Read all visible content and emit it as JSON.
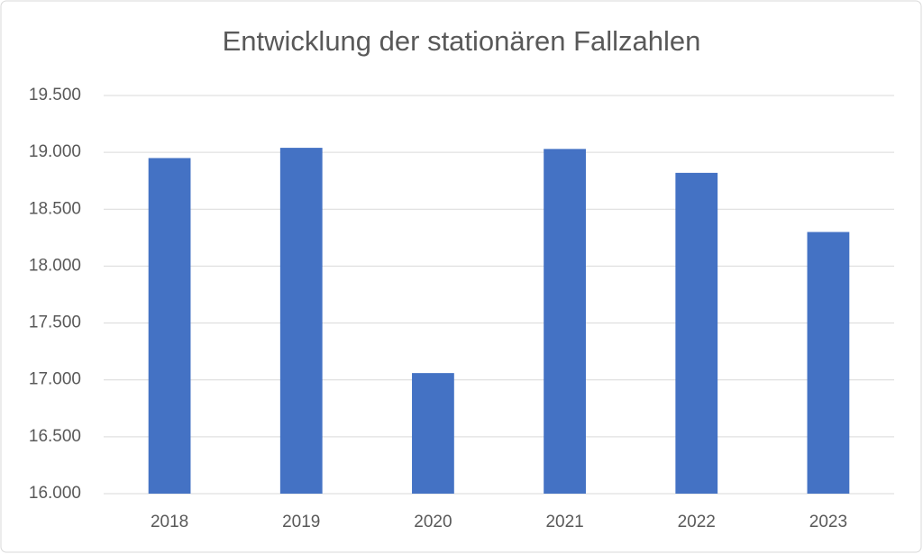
{
  "chart_data": {
    "type": "bar",
    "title": "Entwicklung der stationären Fallzahlen",
    "categories": [
      "2018",
      "2019",
      "2020",
      "2021",
      "2022",
      "2023"
    ],
    "values": [
      18950,
      19040,
      17060,
      19030,
      18820,
      18300
    ],
    "color": "#4472c4",
    "ylim": [
      16000,
      19500
    ],
    "yticks": [
      {
        "value": 16000,
        "label": "16.000"
      },
      {
        "value": 16500,
        "label": "16.500"
      },
      {
        "value": 17000,
        "label": "17.000"
      },
      {
        "value": 17500,
        "label": "17.500"
      },
      {
        "value": 18000,
        "label": "18.000"
      },
      {
        "value": 18500,
        "label": "18.500"
      },
      {
        "value": 19000,
        "label": "19.000"
      },
      {
        "value": 19500,
        "label": "19.500"
      }
    ],
    "grid": true
  }
}
